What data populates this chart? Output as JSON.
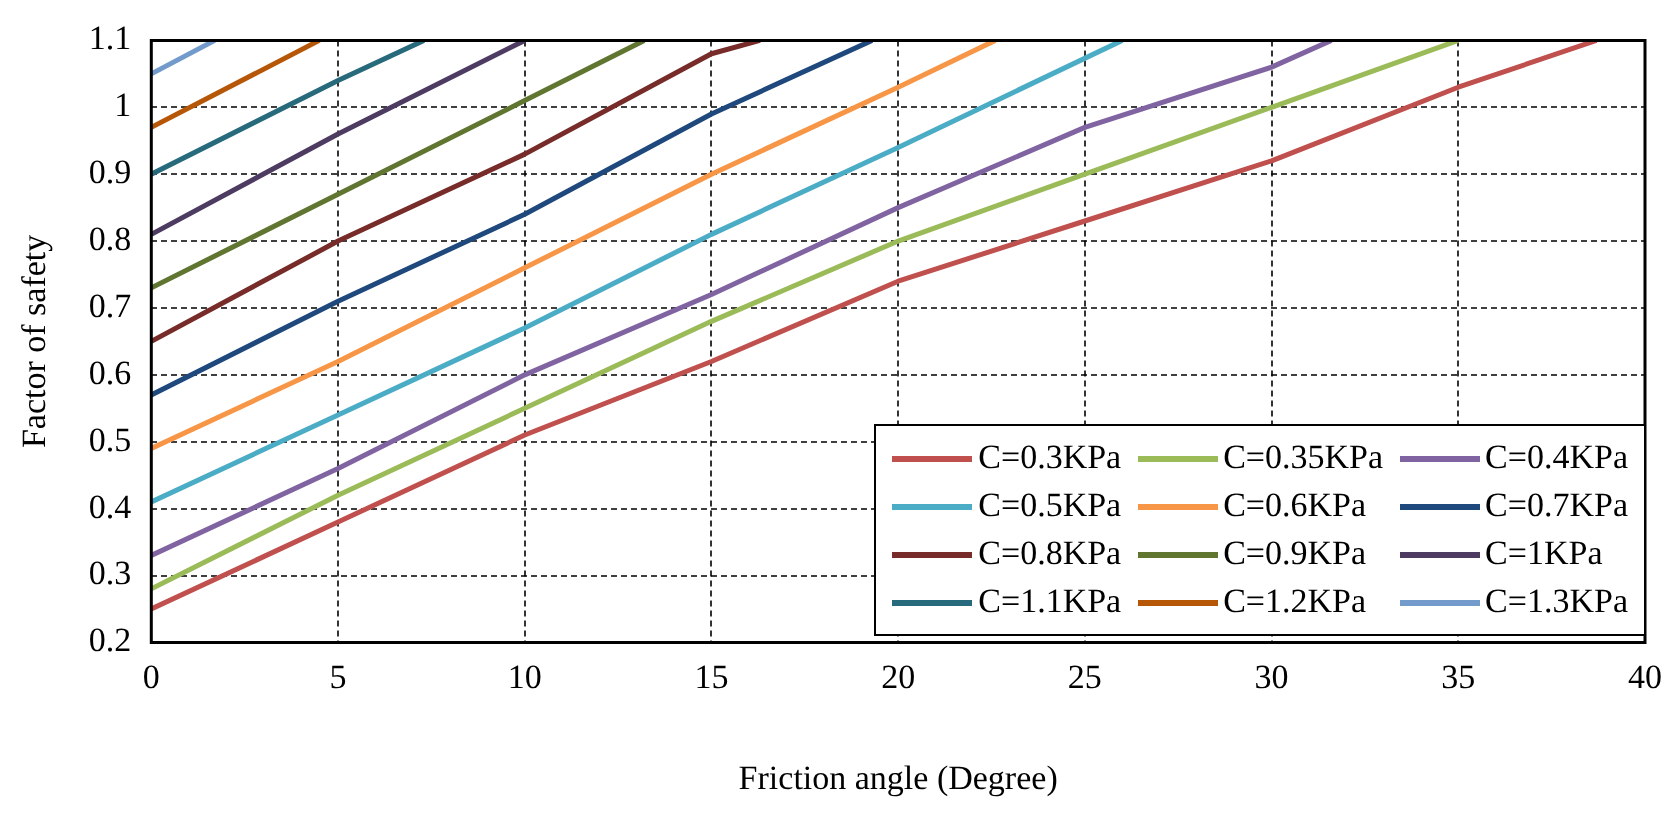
{
  "chart_data": {
    "type": "line",
    "xlabel": "Friction angle (Degree)",
    "ylabel": "Factor of safety",
    "xlim": [
      0,
      40
    ],
    "xticks": [
      0,
      5,
      10,
      15,
      20,
      25,
      30,
      35,
      40
    ],
    "ylim": [
      0.2,
      1.1
    ],
    "yticks": [
      0.2,
      0.3,
      0.4,
      0.5,
      0.6,
      0.7,
      0.8,
      0.9,
      1,
      1.1
    ],
    "grid": true,
    "legend": "bottom right",
    "marker": "none",
    "line_style": "solid",
    "series": [
      {
        "name": "C=0.3KPa",
        "color": "#c0504d",
        "x": [
          0,
          5,
          10,
          15,
          20,
          25,
          30,
          35,
          38.7
        ],
        "values": [
          0.25,
          0.38,
          0.51,
          0.62,
          0.74,
          0.83,
          0.92,
          1.03,
          1.1
        ]
      },
      {
        "name": "C=0.35KPa",
        "color": "#9bbb59",
        "x": [
          0,
          5,
          10,
          15,
          20,
          25,
          30,
          35
        ],
        "values": [
          0.28,
          0.42,
          0.55,
          0.68,
          0.8,
          0.9,
          1,
          1.1
        ]
      },
      {
        "name": "C=0.4KPa",
        "color": "#8064a2",
        "x": [
          0,
          5,
          10,
          15,
          20,
          25,
          30,
          31.6
        ],
        "values": [
          0.33,
          0.46,
          0.6,
          0.72,
          0.85,
          0.97,
          1.06,
          1.1
        ]
      },
      {
        "name": "C=0.5KPa",
        "color": "#4bacc6",
        "x": [
          0,
          5,
          10,
          15,
          20,
          26
        ],
        "values": [
          0.41,
          0.54,
          0.67,
          0.81,
          0.94,
          1.1
        ]
      },
      {
        "name": "C=0.6KPa",
        "color": "#f79646",
        "x": [
          0,
          5,
          10,
          15,
          20,
          22.6
        ],
        "values": [
          0.49,
          0.62,
          0.76,
          0.9,
          1.03,
          1.1
        ]
      },
      {
        "name": "C=0.7KPa",
        "color": "#1f497d",
        "x": [
          0,
          5,
          10,
          15,
          19.3
        ],
        "values": [
          0.57,
          0.71,
          0.84,
          0.99,
          1.1
        ]
      },
      {
        "name": "C=0.8KPa",
        "color": "#772c2a",
        "x": [
          0,
          5,
          10,
          15,
          16.3
        ],
        "values": [
          0.65,
          0.8,
          0.93,
          1.08,
          1.1
        ]
      },
      {
        "name": "C=0.9KPa",
        "color": "#5f7530",
        "x": [
          0,
          5,
          10,
          13.2
        ],
        "values": [
          0.73,
          0.87,
          1.01,
          1.1
        ]
      },
      {
        "name": "C=1KPa",
        "color": "#4d3b62",
        "x": [
          0,
          5,
          10
        ],
        "values": [
          0.81,
          0.96,
          1.1
        ]
      },
      {
        "name": "C=1.1KPa",
        "color": "#276a7c",
        "x": [
          0,
          5,
          7.3
        ],
        "values": [
          0.9,
          1.04,
          1.1
        ]
      },
      {
        "name": "C=1.2KPa",
        "color": "#b65708",
        "x": [
          0,
          4.5
        ],
        "values": [
          0.97,
          1.1
        ]
      },
      {
        "name": "C=1.3KPa",
        "color": "#729aca",
        "x": [
          0,
          1.7
        ],
        "values": [
          1.05,
          1.1
        ]
      }
    ]
  }
}
